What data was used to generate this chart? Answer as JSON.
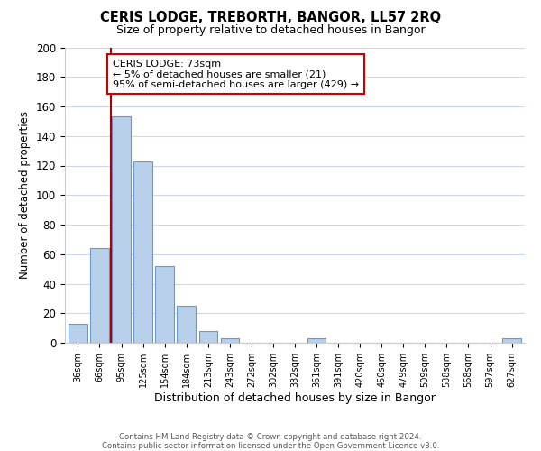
{
  "title": "CERIS LODGE, TREBORTH, BANGOR, LL57 2RQ",
  "subtitle": "Size of property relative to detached houses in Bangor",
  "xlabel": "Distribution of detached houses by size in Bangor",
  "ylabel": "Number of detached properties",
  "bar_labels": [
    "36sqm",
    "66sqm",
    "95sqm",
    "125sqm",
    "154sqm",
    "184sqm",
    "213sqm",
    "243sqm",
    "272sqm",
    "302sqm",
    "332sqm",
    "361sqm",
    "391sqm",
    "420sqm",
    "450sqm",
    "479sqm",
    "509sqm",
    "538sqm",
    "568sqm",
    "597sqm",
    "627sqm"
  ],
  "bar_values": [
    13,
    64,
    153,
    123,
    52,
    25,
    8,
    3,
    0,
    0,
    0,
    3,
    0,
    0,
    0,
    0,
    0,
    0,
    0,
    0,
    3
  ],
  "bar_color": "#b8d0ea",
  "bar_edge_color": "#6699cc",
  "ylim": [
    0,
    200
  ],
  "yticks": [
    0,
    20,
    40,
    60,
    80,
    100,
    120,
    140,
    160,
    180,
    200
  ],
  "vline_x": 1.5,
  "vline_color": "#aa0000",
  "annotation_box_text": "CERIS LODGE: 73sqm\n← 5% of detached houses are smaller (21)\n95% of semi-detached houses are larger (429) →",
  "annotation_box_color": "#ffffff",
  "annotation_box_edge": "#cc0000",
  "footer_line1": "Contains HM Land Registry data © Crown copyright and database right 2024.",
  "footer_line2": "Contains public sector information licensed under the Open Government Licence v3.0.",
  "background_color": "#ffffff",
  "grid_color": "#ccd8ee"
}
